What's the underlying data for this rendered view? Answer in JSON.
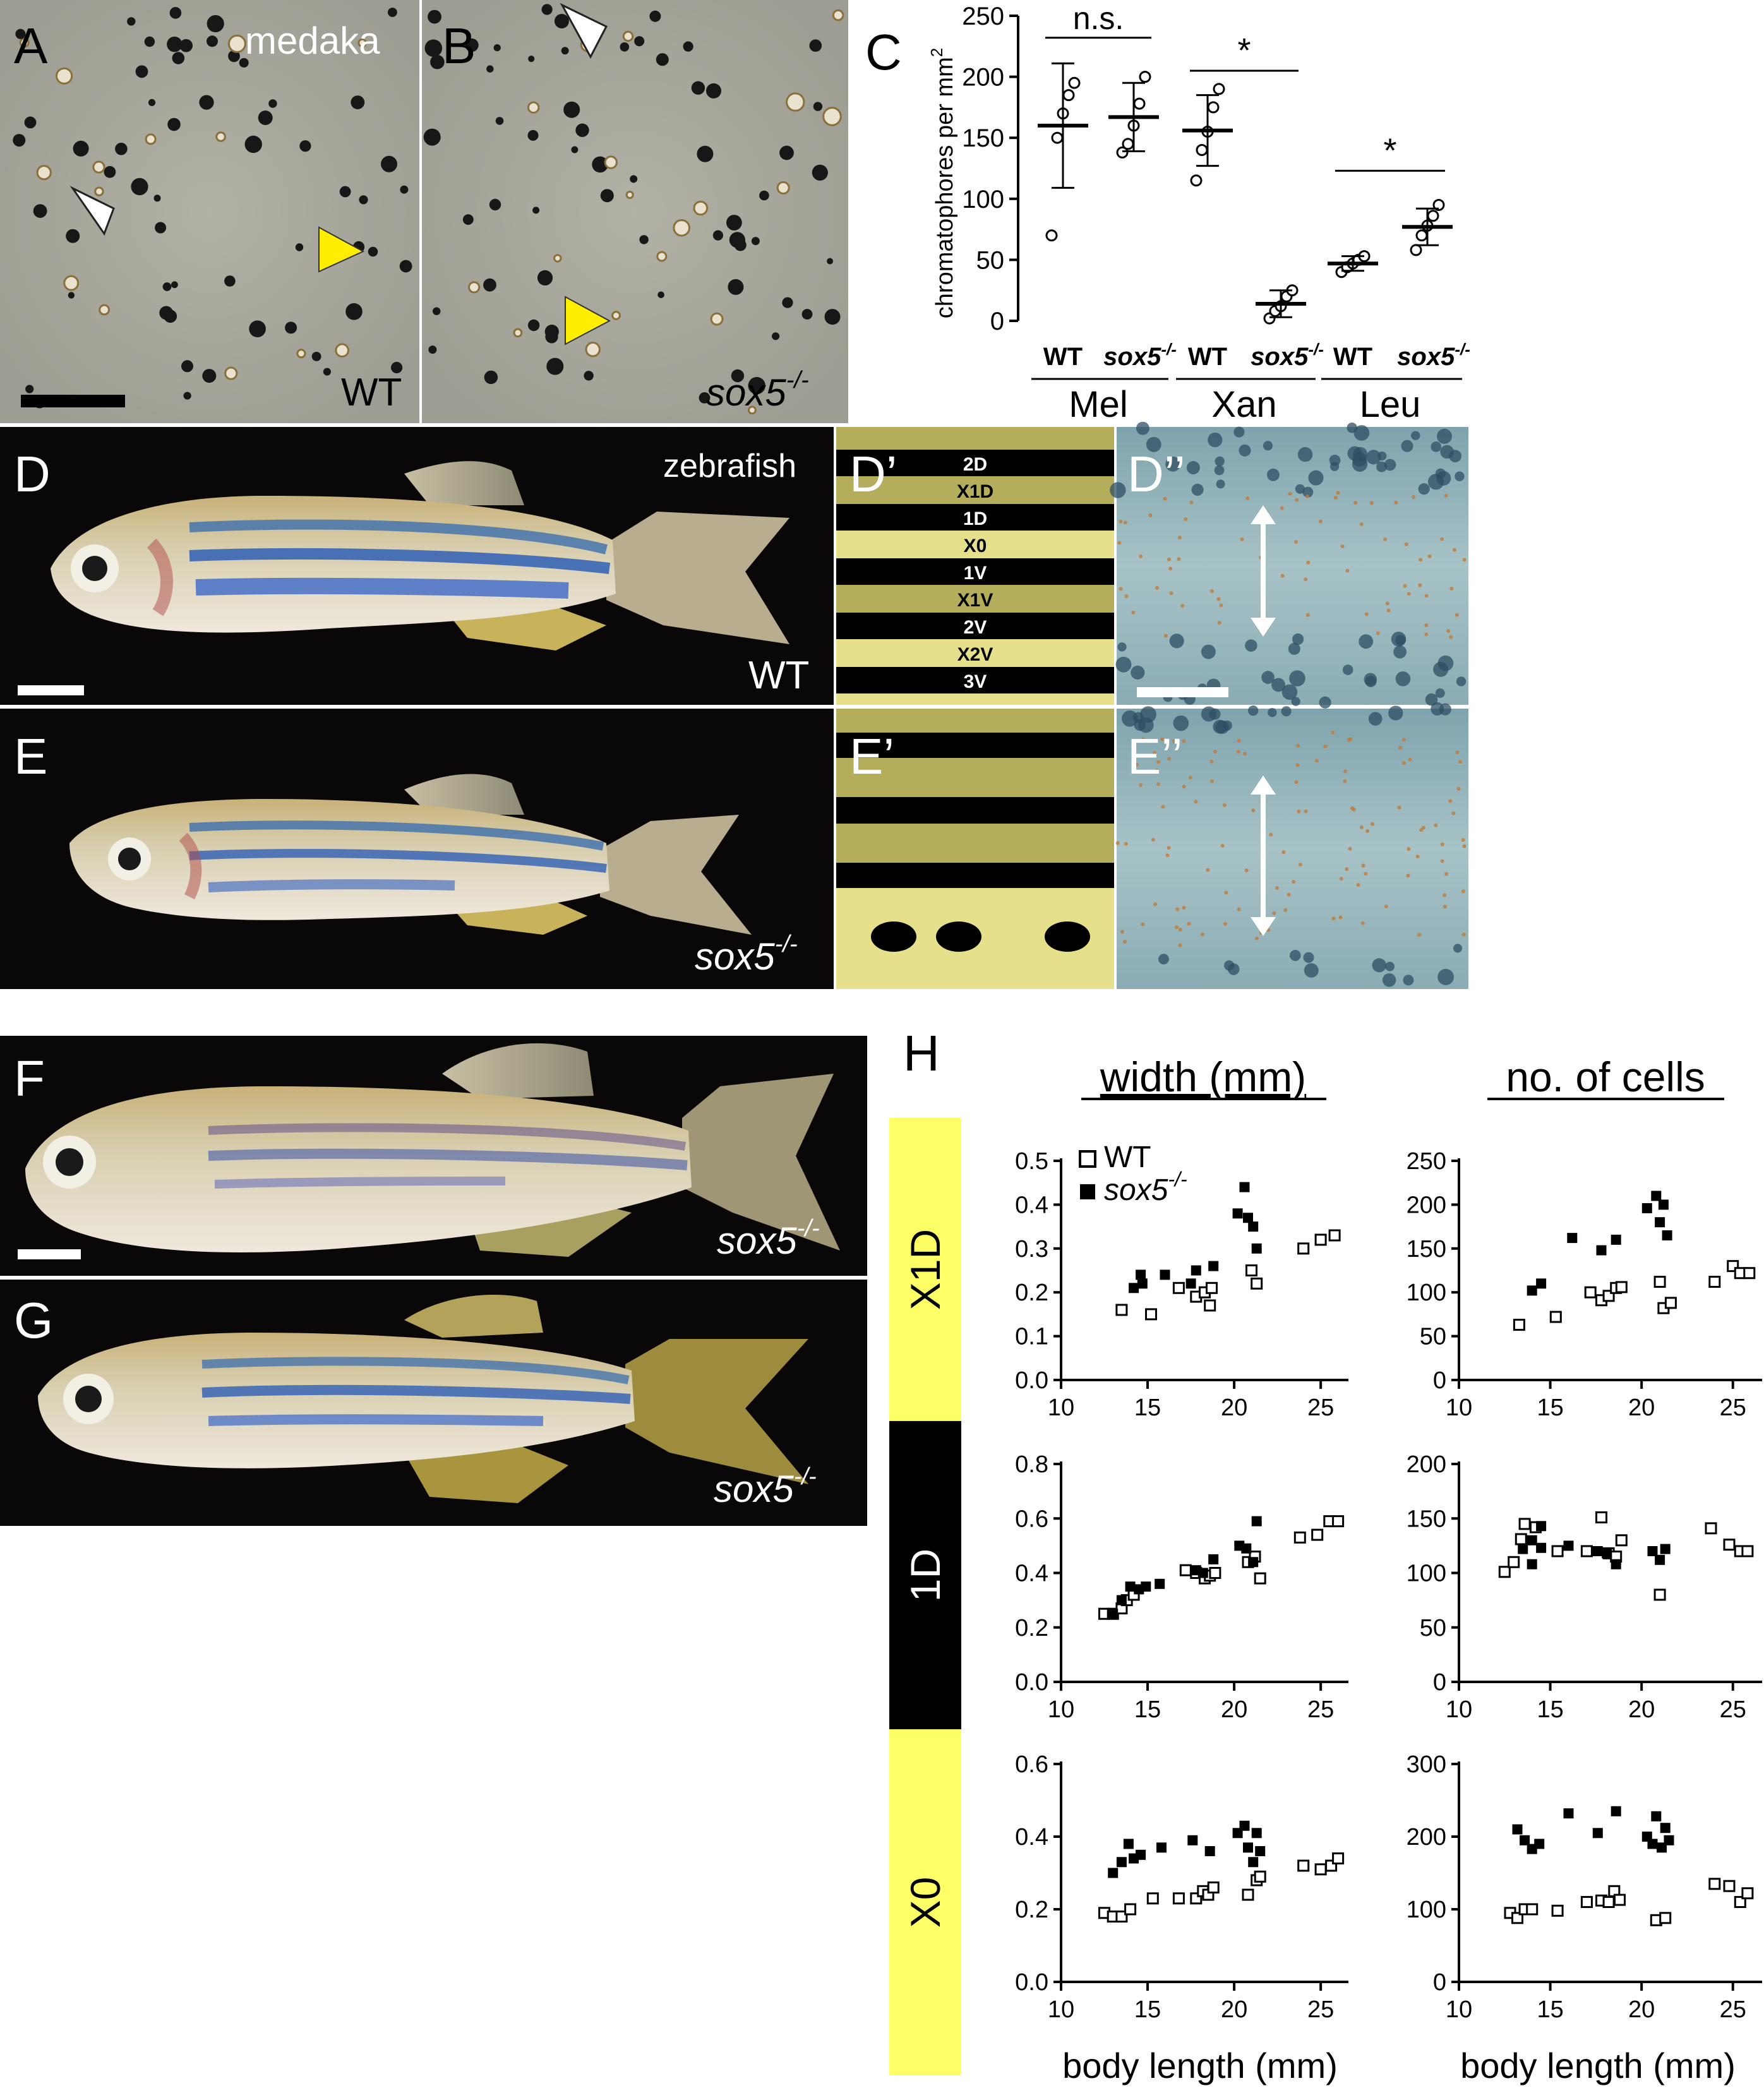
{
  "panels": {
    "A": {
      "letter": "A",
      "species": "medaka",
      "genotype": "WT"
    },
    "B": {
      "letter": "B",
      "genotype": "sox5",
      "genotype_sup": "-/-"
    },
    "C": {
      "letter": "C"
    },
    "D": {
      "letter": "D",
      "species": "zebrafish",
      "genotype": "WT"
    },
    "Dp": {
      "letter": "D’",
      "stripes": [
        "2D",
        "X1D",
        "1D",
        "X0",
        "1V",
        "X1V",
        "2V",
        "X2V",
        "3V"
      ]
    },
    "Dpp": {
      "letter": "D’’"
    },
    "E": {
      "letter": "E",
      "genotype": "sox5",
      "genotype_sup": "-/-"
    },
    "Ep": {
      "letter": "E’"
    },
    "Epp": {
      "letter": "E’’"
    },
    "F": {
      "letter": "F",
      "genotype": "sox5",
      "genotype_sup": "-/-"
    },
    "G": {
      "letter": "G",
      "genotype": "sox5",
      "genotype_sup": "-/-"
    },
    "H": {
      "letter": "H",
      "col1": "width (mm)",
      "col2": "no. of cells",
      "xlabel": "body length (mm)",
      "rows": [
        "X1D",
        "1D",
        "X0"
      ],
      "legend": {
        "wt": "WT",
        "mut": "sox5",
        "mut_sup": "-/-"
      }
    }
  },
  "colors": {
    "yellow": "#ffff66",
    "stripe_light": "#e6e08c",
    "stripe_dark": "#b3ad5c",
    "photo_bg": "#0a0808",
    "tissue": "#a7a79c"
  },
  "chart_data": [
    {
      "id": "C",
      "type": "scatter",
      "ylabel": "chromatophores per mm",
      "ylabel_sup": "2",
      "ylim": [
        0,
        250
      ],
      "yticks": [
        0,
        50,
        100,
        150,
        200,
        250
      ],
      "groups": [
        {
          "name": "Mel",
          "sig": "n.s.",
          "conditions": [
            {
              "label": "WT",
              "mean": 160,
              "sd": 51,
              "points": [
                70,
                150,
                170,
                185,
                195
              ]
            },
            {
              "label": "sox5",
              "sup": "-/-",
              "mean": 167,
              "sd": 28,
              "points": [
                138,
                145,
                160,
                178,
                200
              ]
            }
          ]
        },
        {
          "name": "Xan",
          "sig": "*",
          "conditions": [
            {
              "label": "WT",
              "mean": 156,
              "sd": 29,
              "points": [
                115,
                140,
                155,
                175,
                190
              ]
            },
            {
              "label": "sox5",
              "sup": "-/-",
              "mean": 14,
              "sd": 11,
              "points": [
                2,
                8,
                12,
                20,
                25
              ]
            }
          ]
        },
        {
          "name": "Leu",
          "sig": "*",
          "conditions": [
            {
              "label": "WT",
              "mean": 47,
              "sd": 6,
              "points": [
                40,
                44,
                47,
                50,
                53
              ]
            },
            {
              "label": "sox5",
              "sup": "-/-",
              "mean": 77,
              "sd": 15,
              "points": [
                58,
                70,
                78,
                86,
                95
              ]
            }
          ]
        }
      ]
    },
    {
      "id": "H-X1D-width",
      "type": "scatter",
      "xlabel": "body length (mm)",
      "xlim": [
        10,
        26
      ],
      "ylim": [
        0,
        0.5
      ],
      "xticks": [
        10,
        15,
        20,
        25
      ],
      "yticks": [
        0.0,
        0.1,
        0.2,
        0.3,
        0.4,
        0.5
      ],
      "series": [
        {
          "name": "WT",
          "points": [
            [
              13.5,
              0.16
            ],
            [
              15.2,
              0.15
            ],
            [
              16.8,
              0.21
            ],
            [
              17.8,
              0.19
            ],
            [
              18.3,
              0.2
            ],
            [
              18.6,
              0.17
            ],
            [
              18.7,
              0.21
            ],
            [
              21.0,
              0.25
            ],
            [
              21.3,
              0.22
            ],
            [
              24.0,
              0.3
            ],
            [
              25.0,
              0.32
            ],
            [
              25.8,
              0.33
            ]
          ]
        },
        {
          "name": "sox5",
          "points": [
            [
              14.2,
              0.21
            ],
            [
              14.6,
              0.24
            ],
            [
              14.7,
              0.22
            ],
            [
              16.0,
              0.24
            ],
            [
              17.5,
              0.22
            ],
            [
              17.8,
              0.25
            ],
            [
              18.8,
              0.26
            ],
            [
              20.2,
              0.38
            ],
            [
              20.6,
              0.44
            ],
            [
              20.8,
              0.37
            ],
            [
              21.1,
              0.35
            ],
            [
              21.3,
              0.3
            ]
          ]
        }
      ]
    },
    {
      "id": "H-X1D-cells",
      "type": "scatter",
      "xlabel": "body length (mm)",
      "xlim": [
        10,
        26
      ],
      "ylim": [
        0,
        250
      ],
      "xticks": [
        10,
        15,
        20,
        25
      ],
      "yticks": [
        0,
        50,
        100,
        150,
        200,
        250
      ],
      "series": [
        {
          "name": "WT",
          "points": [
            [
              13.3,
              63
            ],
            [
              15.3,
              72
            ],
            [
              17.2,
              100
            ],
            [
              17.8,
              91
            ],
            [
              18.2,
              96
            ],
            [
              18.6,
              105
            ],
            [
              18.9,
              106
            ],
            [
              21.0,
              112
            ],
            [
              21.2,
              82
            ],
            [
              21.6,
              88
            ],
            [
              24.0,
              112
            ],
            [
              25.0,
              130
            ],
            [
              25.4,
              122
            ],
            [
              25.9,
              122
            ]
          ]
        },
        {
          "name": "sox5",
          "points": [
            [
              14.0,
              102
            ],
            [
              14.5,
              110
            ],
            [
              16.2,
              162
            ],
            [
              17.8,
              148
            ],
            [
              18.6,
              160
            ],
            [
              20.3,
              196
            ],
            [
              20.8,
              210
            ],
            [
              21.0,
              180
            ],
            [
              21.2,
              200
            ],
            [
              21.4,
              165
            ]
          ]
        }
      ]
    },
    {
      "id": "H-1D-width",
      "type": "scatter",
      "xlabel": "body length (mm)",
      "xlim": [
        10,
        26
      ],
      "ylim": [
        0,
        0.8
      ],
      "xticks": [
        10,
        15,
        20,
        25
      ],
      "yticks": [
        0.0,
        0.2,
        0.4,
        0.6,
        0.8
      ],
      "series": [
        {
          "name": "WT",
          "points": [
            [
              12.5,
              0.25
            ],
            [
              13.0,
              0.25
            ],
            [
              13.5,
              0.27
            ],
            [
              13.8,
              0.3
            ],
            [
              14.2,
              0.32
            ],
            [
              17.2,
              0.41
            ],
            [
              17.8,
              0.4
            ],
            [
              18.3,
              0.38
            ],
            [
              18.6,
              0.39
            ],
            [
              18.9,
              0.4
            ],
            [
              20.8,
              0.44
            ],
            [
              21.2,
              0.46
            ],
            [
              21.5,
              0.38
            ],
            [
              23.8,
              0.53
            ],
            [
              24.8,
              0.54
            ],
            [
              25.5,
              0.59
            ],
            [
              26.0,
              0.59
            ]
          ]
        },
        {
          "name": "sox5",
          "points": [
            [
              13.0,
              0.25
            ],
            [
              13.5,
              0.3
            ],
            [
              14.0,
              0.35
            ],
            [
              14.5,
              0.34
            ],
            [
              14.9,
              0.35
            ],
            [
              15.7,
              0.36
            ],
            [
              17.8,
              0.41
            ],
            [
              18.2,
              0.4
            ],
            [
              18.8,
              0.45
            ],
            [
              20.3,
              0.5
            ],
            [
              20.7,
              0.49
            ],
            [
              21.1,
              0.44
            ],
            [
              21.3,
              0.59
            ]
          ]
        }
      ]
    },
    {
      "id": "H-1D-cells",
      "type": "scatter",
      "xlabel": "body length (mm)",
      "xlim": [
        10,
        26
      ],
      "ylim": [
        0,
        200
      ],
      "xticks": [
        10,
        15,
        20,
        25
      ],
      "yticks": [
        0,
        50,
        100,
        150,
        200
      ],
      "series": [
        {
          "name": "WT",
          "points": [
            [
              12.5,
              101
            ],
            [
              13.0,
              110
            ],
            [
              13.4,
              131
            ],
            [
              13.6,
              145
            ],
            [
              14.2,
              142
            ],
            [
              15.4,
              120
            ],
            [
              17.0,
              120
            ],
            [
              17.8,
              151
            ],
            [
              18.2,
              118
            ],
            [
              18.6,
              115
            ],
            [
              18.9,
              130
            ],
            [
              21.0,
              80
            ],
            [
              23.8,
              141
            ],
            [
              24.8,
              126
            ],
            [
              25.4,
              120
            ],
            [
              25.8,
              120
            ]
          ]
        },
        {
          "name": "sox5",
          "points": [
            [
              13.5,
              122
            ],
            [
              14.0,
              130
            ],
            [
              14.0,
              108
            ],
            [
              14.5,
              143
            ],
            [
              14.5,
              123
            ],
            [
              16.0,
              125
            ],
            [
              17.6,
              120
            ],
            [
              18.1,
              118
            ],
            [
              18.6,
              108
            ],
            [
              20.6,
              120
            ],
            [
              21.0,
              112
            ],
            [
              21.3,
              122
            ]
          ]
        }
      ]
    },
    {
      "id": "H-X0-width",
      "type": "scatter",
      "xlabel": "body length (mm)",
      "xlim": [
        10,
        26
      ],
      "ylim": [
        0,
        0.6
      ],
      "xticks": [
        10,
        15,
        20,
        25
      ],
      "yticks": [
        0.0,
        0.2,
        0.4,
        0.6
      ],
      "series": [
        {
          "name": "WT",
          "points": [
            [
              12.5,
              0.19
            ],
            [
              13.0,
              0.18
            ],
            [
              13.5,
              0.18
            ],
            [
              14.0,
              0.2
            ],
            [
              15.3,
              0.23
            ],
            [
              16.8,
              0.23
            ],
            [
              17.8,
              0.23
            ],
            [
              18.2,
              0.25
            ],
            [
              18.5,
              0.24
            ],
            [
              18.8,
              0.26
            ],
            [
              20.8,
              0.24
            ],
            [
              21.3,
              0.28
            ],
            [
              21.5,
              0.29
            ],
            [
              24.0,
              0.32
            ],
            [
              25.0,
              0.31
            ],
            [
              25.6,
              0.32
            ],
            [
              26.0,
              0.34
            ]
          ]
        },
        {
          "name": "sox5",
          "points": [
            [
              13.0,
              0.3
            ],
            [
              13.5,
              0.33
            ],
            [
              13.9,
              0.38
            ],
            [
              14.2,
              0.34
            ],
            [
              14.6,
              0.35
            ],
            [
              15.8,
              0.37
            ],
            [
              17.6,
              0.39
            ],
            [
              18.6,
              0.36
            ],
            [
              20.2,
              0.41
            ],
            [
              20.6,
              0.43
            ],
            [
              20.8,
              0.37
            ],
            [
              21.1,
              0.33
            ],
            [
              21.3,
              0.41
            ],
            [
              21.5,
              0.36
            ]
          ]
        }
      ]
    },
    {
      "id": "H-X0-cells",
      "type": "scatter",
      "xlabel": "body length (mm)",
      "xlim": [
        10,
        26
      ],
      "ylim": [
        0,
        300
      ],
      "xticks": [
        10,
        15,
        20,
        25
      ],
      "yticks": [
        0,
        100,
        200,
        300
      ],
      "series": [
        {
          "name": "WT",
          "points": [
            [
              12.8,
              95
            ],
            [
              13.2,
              88
            ],
            [
              13.6,
              100
            ],
            [
              14.0,
              100
            ],
            [
              15.4,
              98
            ],
            [
              17.0,
              110
            ],
            [
              17.8,
              112
            ],
            [
              18.2,
              110
            ],
            [
              18.5,
              125
            ],
            [
              18.8,
              113
            ],
            [
              20.8,
              85
            ],
            [
              21.3,
              88
            ],
            [
              24.0,
              135
            ],
            [
              24.8,
              132
            ],
            [
              25.4,
              110
            ],
            [
              25.8,
              122
            ]
          ]
        },
        {
          "name": "sox5",
          "points": [
            [
              13.2,
              210
            ],
            [
              13.6,
              195
            ],
            [
              14.0,
              183
            ],
            [
              14.4,
              190
            ],
            [
              16.0,
              232
            ],
            [
              17.6,
              205
            ],
            [
              18.6,
              235
            ],
            [
              20.3,
              200
            ],
            [
              20.6,
              190
            ],
            [
              20.8,
              228
            ],
            [
              21.1,
              185
            ],
            [
              21.3,
              212
            ],
            [
              21.5,
              195
            ]
          ]
        }
      ]
    }
  ]
}
